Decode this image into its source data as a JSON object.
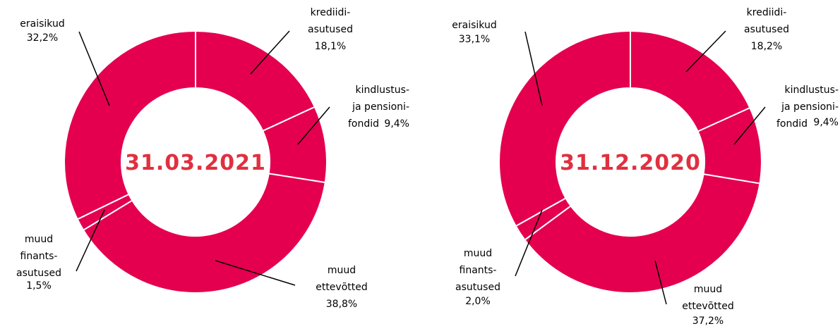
{
  "chart_data": [
    {
      "type": "donut",
      "title": "31.03.2021",
      "categories": [
        "krediidi-\nasutused",
        "kindlustus-\nja pensioni-\nfondid",
        "muud\nettevõtted",
        "muud\nfinants-\nasutused",
        "eraisikud"
      ],
      "values": [
        18.1,
        9.4,
        38.8,
        1.5,
        32.2
      ],
      "value_labels": [
        "18,1%",
        "9,4%",
        "38,8%",
        "1,5%",
        "32,2%"
      ],
      "color": "#e4004f",
      "title_color": "#e0303f"
    },
    {
      "type": "donut",
      "title": "31.12.2020",
      "categories": [
        "krediidi-\nasutused",
        "kindlustus-\nja pensioni-\nfondid",
        "muud\nettevõtted",
        "muud\nfinants-\nasutused",
        "eraisikud"
      ],
      "values": [
        18.2,
        9.4,
        37.2,
        2.0,
        33.1
      ],
      "value_labels": [
        "18,2%",
        "9,4%",
        "37,2%",
        "2,0%",
        "33,1%"
      ],
      "color": "#e4004f",
      "title_color": "#e0303f"
    }
  ]
}
